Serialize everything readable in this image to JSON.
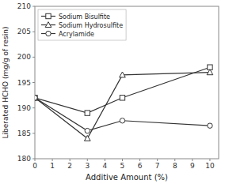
{
  "chart_data": {
    "type": "line",
    "xlabel": "Additive Amount (%)",
    "ylabel": "Liberated HCHO (mg/g of resin)",
    "x": [
      0,
      3,
      5,
      10
    ],
    "series": [
      {
        "name": "Sodium Bisulfite",
        "color": "#333333",
        "marker": "square",
        "line_style": "solid",
        "values": [
          192,
          189,
          192,
          198
        ]
      },
      {
        "name": "Sodium Hydrosulfite",
        "color": "#333333",
        "marker": "triangle",
        "line_style": "solid",
        "values": [
          192,
          184,
          196.5,
          197
        ]
      },
      {
        "name": "Acrylamide",
        "color": "#333333",
        "marker": "circle",
        "line_style": "solid",
        "values": [
          192,
          185.5,
          187.5,
          186.5
        ]
      }
    ],
    "xlim": [
      0,
      10.5
    ],
    "ylim": [
      180,
      210
    ],
    "xticks": [
      0,
      1,
      2,
      3,
      4,
      5,
      6,
      7,
      8,
      9,
      10
    ],
    "yticks": [
      180,
      185,
      190,
      195,
      200,
      205,
      210
    ],
    "legend": "upper left",
    "grid": false
  }
}
